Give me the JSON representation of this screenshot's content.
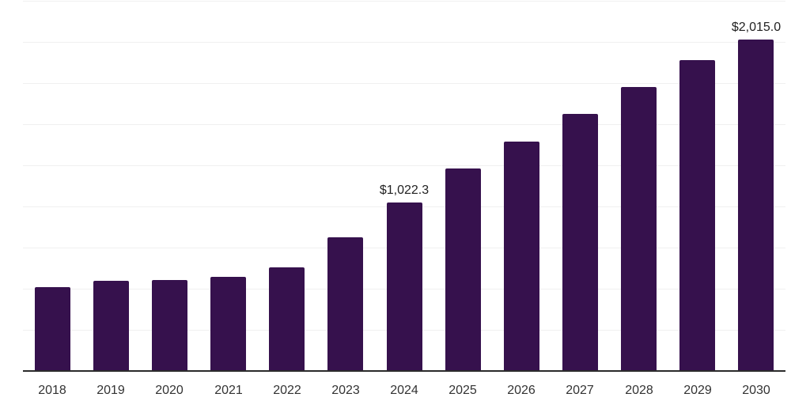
{
  "chart_data": {
    "type": "bar",
    "title": "",
    "xlabel": "",
    "ylabel": "",
    "categories": [
      "2018",
      "2019",
      "2020",
      "2021",
      "2022",
      "2023",
      "2024",
      "2025",
      "2026",
      "2027",
      "2028",
      "2029",
      "2030"
    ],
    "values": [
      510,
      548,
      553,
      572,
      630,
      813,
      1022.3,
      1231,
      1394,
      1563,
      1726,
      1890,
      2015
    ],
    "data_labels": [
      "",
      "",
      "",
      "",
      "",
      "",
      "$1,022.3",
      "",
      "",
      "",
      "",
      "",
      "$2,015.0"
    ],
    "ylim": [
      0,
      2250
    ],
    "gridline_step": 250,
    "grid": "horizontal-only",
    "legend_position": "none",
    "colors": {
      "bar": "#36114D",
      "gridline": "#F0F0F0",
      "axis_line": "#2B2B2B",
      "tick_label": "#333333",
      "data_label": "#222222",
      "background": "#FFFFFF"
    }
  }
}
